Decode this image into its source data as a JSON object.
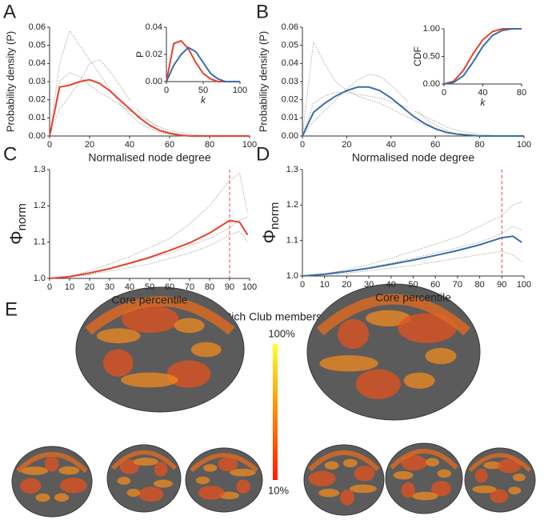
{
  "chart_data": [
    {
      "type": "line",
      "panel": "A",
      "xlabel": "Normalised node degree",
      "ylabel": "Probability density (P)",
      "x": [
        0,
        5,
        10,
        15,
        20,
        25,
        30,
        35,
        40,
        45,
        50,
        55,
        60,
        65,
        70,
        80,
        90,
        100
      ],
      "series": [
        {
          "color": "#9a9a9a",
          "values": [
            0,
            0.04,
            0.058,
            0.05,
            0.042,
            0.034,
            0.026,
            0.018,
            0.012,
            0.007,
            0.004,
            0.002,
            0.001,
            0,
            0,
            0,
            0,
            0
          ]
        },
        {
          "color": "#9a9a9a",
          "values": [
            0,
            0.015,
            0.022,
            0.03,
            0.04,
            0.042,
            0.036,
            0.028,
            0.02,
            0.013,
            0.008,
            0.004,
            0.002,
            0.001,
            0,
            0,
            0,
            0
          ]
        },
        {
          "color": "#9a9a9a",
          "values": [
            0,
            0.03,
            0.035,
            0.033,
            0.028,
            0.024,
            0.021,
            0.017,
            0.014,
            0.011,
            0.008,
            0.005,
            0.003,
            0.002,
            0.001,
            0,
            0,
            0
          ]
        },
        {
          "color": "#e8412c",
          "values": [
            0,
            0.027,
            0.028,
            0.03,
            0.031,
            0.029,
            0.025,
            0.02,
            0.015,
            0.01,
            0.006,
            0.003,
            0.0015,
            0.0005,
            0,
            0,
            0,
            0
          ]
        }
      ],
      "xlim": [
        0,
        100
      ],
      "ylim": [
        0,
        0.06
      ],
      "xticks": [
        0,
        20,
        40,
        60,
        80,
        100
      ],
      "yticks": [
        {
          "value": 0,
          "label": "0.00"
        },
        {
          "value": 0.01,
          "label": "0.01"
        },
        {
          "value": 0.02,
          "label": "0.02"
        },
        {
          "value": 0.03,
          "label": "0.03"
        },
        {
          "value": 0.04,
          "label": "0.04"
        },
        {
          "value": 0.05,
          "label": "0.05"
        },
        {
          "value": 0.06,
          "label": "0.06"
        }
      ]
    },
    {
      "type": "line",
      "xlabel": "k",
      "ylabel": "P",
      "x": [
        0,
        10,
        20,
        30,
        40,
        50,
        60,
        70,
        80,
        90,
        100
      ],
      "series": [
        {
          "color": "#e8412c",
          "values": [
            0,
            0.028,
            0.03,
            0.024,
            0.014,
            0.006,
            0.002,
            0,
            0,
            0,
            0
          ]
        },
        {
          "color": "#3a6ea8",
          "values": [
            0,
            0.012,
            0.02,
            0.025,
            0.022,
            0.014,
            0.006,
            0.002,
            0,
            0,
            0
          ]
        }
      ],
      "xlim": [
        0,
        100
      ],
      "ylim": [
        0,
        0.04
      ],
      "xticks": [
        0,
        50,
        100
      ],
      "yticks": [
        {
          "value": 0,
          "label": "0.00"
        },
        {
          "value": 0.02,
          "label": "0.02"
        },
        {
          "value": 0.04,
          "label": "0.04"
        }
      ]
    },
    {
      "type": "line",
      "panel": "B",
      "xlabel": "Normalised node degree",
      "ylabel": "Probability density (P)",
      "x": [
        0,
        5,
        10,
        15,
        20,
        25,
        30,
        35,
        40,
        45,
        50,
        55,
        60,
        65,
        70,
        80,
        90,
        100
      ],
      "series": [
        {
          "color": "#9a9a9a",
          "values": [
            0,
            0.052,
            0.04,
            0.03,
            0.025,
            0.022,
            0.02,
            0.018,
            0.015,
            0.012,
            0.009,
            0.006,
            0.004,
            0.002,
            0.001,
            0,
            0,
            0
          ]
        },
        {
          "color": "#9a9a9a",
          "values": [
            0,
            0.008,
            0.014,
            0.02,
            0.026,
            0.031,
            0.034,
            0.033,
            0.028,
            0.022,
            0.016,
            0.01,
            0.006,
            0.003,
            0.001,
            0,
            0,
            0
          ]
        },
        {
          "color": "#9a9a9a",
          "values": [
            0,
            0.018,
            0.022,
            0.024,
            0.024,
            0.023,
            0.022,
            0.021,
            0.019,
            0.017,
            0.014,
            0.011,
            0.008,
            0.005,
            0.003,
            0.001,
            0,
            0
          ]
        },
        {
          "color": "#3a6ea8",
          "values": [
            0,
            0.013,
            0.018,
            0.022,
            0.025,
            0.027,
            0.027,
            0.025,
            0.021,
            0.016,
            0.011,
            0.007,
            0.004,
            0.002,
            0.001,
            0,
            0,
            0
          ]
        }
      ],
      "xlim": [
        0,
        100
      ],
      "ylim": [
        0,
        0.06
      ],
      "xticks": [
        0,
        20,
        40,
        60,
        80,
        100
      ],
      "yticks": [
        {
          "value": 0,
          "label": "0.00"
        },
        {
          "value": 0.01,
          "label": "0.01"
        },
        {
          "value": 0.02,
          "label": "0.02"
        },
        {
          "value": 0.03,
          "label": "0.03"
        },
        {
          "value": 0.04,
          "label": "0.04"
        },
        {
          "value": 0.05,
          "label": "0.05"
        },
        {
          "value": 0.06,
          "label": "0.06"
        }
      ]
    },
    {
      "type": "line",
      "xlabel": "k",
      "ylabel": "CDF",
      "x": [
        0,
        10,
        20,
        30,
        40,
        50,
        60,
        70,
        80
      ],
      "series": [
        {
          "color": "#e8412c",
          "values": [
            0,
            0.05,
            0.25,
            0.55,
            0.8,
            0.95,
            1,
            1,
            1
          ]
        },
        {
          "color": "#3a6ea8",
          "values": [
            0,
            0.03,
            0.15,
            0.4,
            0.68,
            0.88,
            0.97,
            1,
            1
          ]
        }
      ],
      "xlim": [
        0,
        80
      ],
      "ylim": [
        0,
        1
      ],
      "xticks": [
        0,
        40,
        80
      ],
      "yticks": [
        {
          "value": 0,
          "label": "0.00"
        },
        {
          "value": 0.5,
          "label": "0.50"
        },
        {
          "value": 1,
          "label": "1.00"
        }
      ]
    },
    {
      "type": "line",
      "panel": "C",
      "xlabel": "Core percentile",
      "ylabel": {
        "symbol": "Φ",
        "sub": "norm"
      },
      "x": [
        0,
        10,
        20,
        30,
        40,
        50,
        60,
        70,
        80,
        90,
        95,
        99
      ],
      "series": [
        {
          "color": "#9a9a9a",
          "values": [
            1.0,
            1.006,
            1.02,
            1.04,
            1.06,
            1.085,
            1.11,
            1.15,
            1.2,
            1.27,
            1.29,
            1.18
          ]
        },
        {
          "color": "#9a9a9a",
          "values": [
            1.0,
            1.003,
            1.01,
            1.02,
            1.03,
            1.04,
            1.055,
            1.07,
            1.09,
            1.12,
            1.13,
            1.1
          ]
        },
        {
          "color": "#9a9a9a",
          "values": [
            1.0,
            1.004,
            1.012,
            1.025,
            1.04,
            1.055,
            1.07,
            1.09,
            1.11,
            1.14,
            1.16,
            1.17
          ]
        },
        {
          "color": "#e8412c",
          "values": [
            1.0,
            1.005,
            1.015,
            1.027,
            1.042,
            1.058,
            1.077,
            1.098,
            1.125,
            1.16,
            1.155,
            1.12
          ]
        }
      ],
      "vline": 90,
      "xlim": [
        0,
        100
      ],
      "ylim": [
        1.0,
        1.3
      ],
      "xticks": [
        0,
        10,
        20,
        30,
        40,
        50,
        60,
        70,
        80,
        90,
        100
      ],
      "yticks": [
        {
          "value": 1.0,
          "label": "1.0"
        },
        {
          "value": 1.1,
          "label": "1.1"
        },
        {
          "value": 1.2,
          "label": "1.2"
        },
        {
          "value": 1.3,
          "label": "1.3"
        }
      ]
    },
    {
      "type": "line",
      "panel": "D",
      "xlabel": "Core percentile",
      "ylabel": {
        "symbol": "Φ",
        "sub": "norm"
      },
      "x": [
        0,
        10,
        20,
        30,
        40,
        50,
        60,
        70,
        80,
        90,
        95,
        99
      ],
      "series": [
        {
          "color": "#9a9a9a",
          "values": [
            1.0,
            1.006,
            1.018,
            1.032,
            1.05,
            1.07,
            1.09,
            1.11,
            1.14,
            1.17,
            1.2,
            1.21
          ]
        },
        {
          "color": "#9a9a9a",
          "values": [
            1.0,
            1.003,
            1.008,
            1.015,
            1.022,
            1.03,
            1.04,
            1.05,
            1.06,
            1.07,
            1.06,
            1.04
          ]
        },
        {
          "color": "#9a9a9a",
          "values": [
            1.0,
            1.005,
            1.013,
            1.024,
            1.036,
            1.05,
            1.065,
            1.08,
            1.095,
            1.12,
            1.14,
            1.13
          ]
        },
        {
          "color": "#3a6ea8",
          "values": [
            1.0,
            1.005,
            1.013,
            1.022,
            1.033,
            1.045,
            1.058,
            1.072,
            1.088,
            1.108,
            1.112,
            1.095
          ]
        }
      ],
      "vline": 90,
      "xlim": [
        0,
        100
      ],
      "ylim": [
        1.0,
        1.3
      ],
      "xticks": [
        0,
        10,
        20,
        30,
        40,
        50,
        60,
        70,
        80,
        90,
        100
      ],
      "yticks": [
        {
          "value": 1.0,
          "label": "1.0"
        },
        {
          "value": 1.1,
          "label": "1.1"
        },
        {
          "value": 1.2,
          "label": "1.2"
        },
        {
          "value": 1.3,
          "label": "1.3"
        }
      ]
    }
  ],
  "panel_e": {
    "panel": "E",
    "title": "Rich Club membership",
    "max_label": "100%",
    "min_label": "10%"
  }
}
